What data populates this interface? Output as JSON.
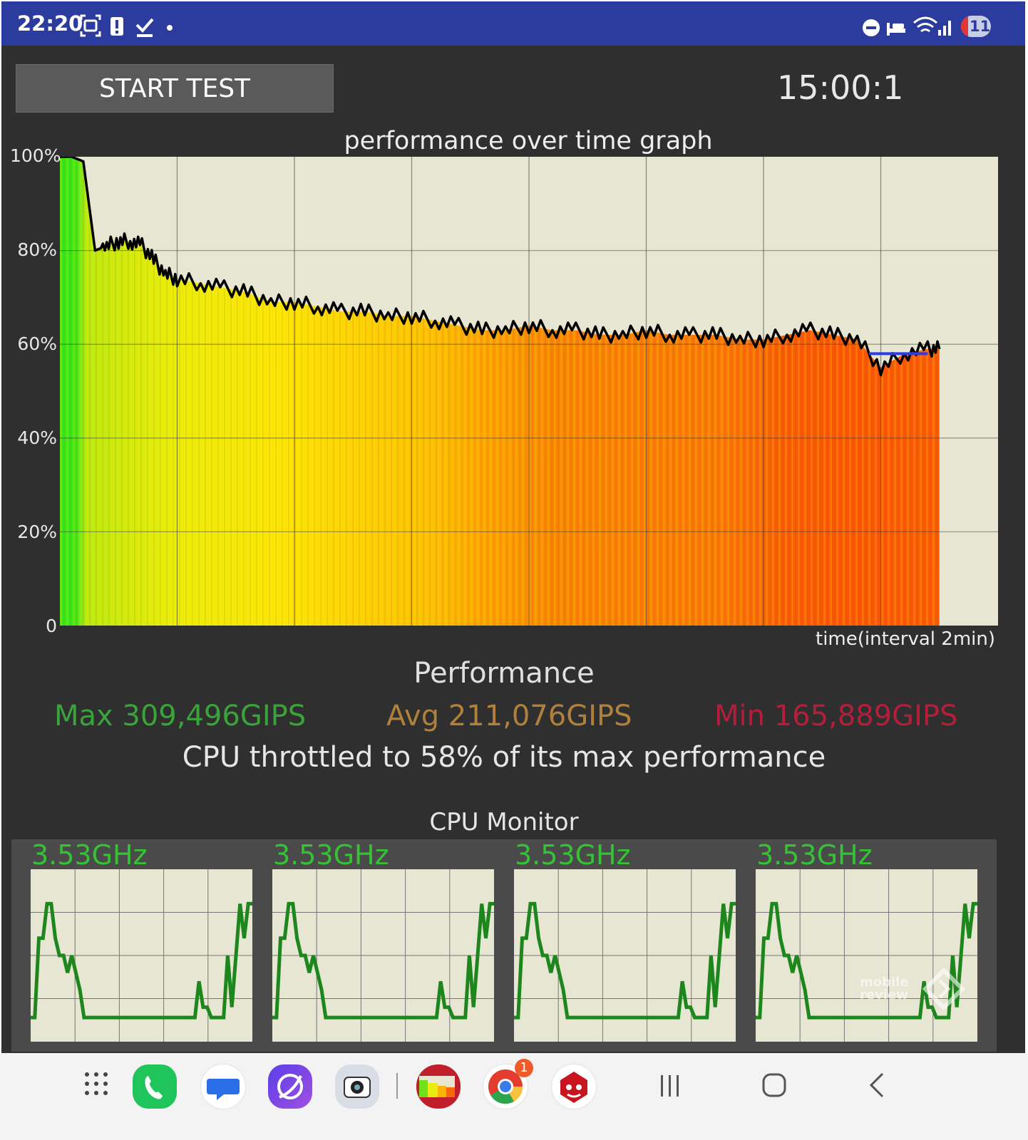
{
  "status_bar": {
    "time": "22:20",
    "icons": [
      "screenshot-icon",
      "alert-icon",
      "check-icon",
      "dot-icon",
      "dnd-icon",
      "bed-icon",
      "wifi-icon",
      "signal-icon"
    ],
    "battery": "11"
  },
  "controls": {
    "start_test_label": "START TEST",
    "timer": "15:00:1"
  },
  "chart_data": {
    "type": "area",
    "title": "performance over time graph",
    "xlabel": "time(interval 2min)",
    "ylabel": "",
    "ylim": [
      0,
      100
    ],
    "yticks": [
      "100%",
      "80%",
      "60%",
      "40%",
      "20%",
      "0"
    ],
    "grid": true,
    "x": [
      0,
      0.1,
      0.2,
      0.3,
      0.4,
      0.5,
      0.6,
      0.7,
      0.8,
      0.9,
      1.0,
      1.2,
      1.4,
      1.6,
      1.8,
      2.0,
      2.2,
      2.4,
      2.6,
      2.8,
      3.0,
      3.2,
      3.4,
      3.6,
      3.8,
      4.0,
      4.2,
      4.4,
      4.6,
      4.8,
      5.0,
      5.2,
      5.4,
      5.6,
      5.8,
      6.0,
      6.2,
      6.4,
      6.6,
      6.8,
      7.0,
      7.2,
      7.4,
      7.5
    ],
    "y": [
      100,
      100,
      99,
      80,
      81,
      82,
      82,
      81,
      78,
      75,
      74,
      73,
      72,
      71,
      69,
      69,
      68,
      67,
      67,
      66,
      66,
      65,
      64,
      63,
      63,
      64,
      63,
      63,
      62,
      62,
      63,
      62,
      62,
      62,
      61,
      61,
      62,
      63,
      62,
      61,
      55,
      58,
      59,
      59
    ]
  },
  "performance": {
    "heading": "Performance",
    "max": "Max 309,496GIPS",
    "avg": "Avg 211,076GIPS",
    "min": "Min 165,889GIPS",
    "throttle": "CPU throttled to 58% of its max performance"
  },
  "cpu_monitor": {
    "title": "CPU Monitor",
    "cores": [
      {
        "freq": "3.53GHz",
        "levels": [
          0.14,
          0.14,
          0.6,
          0.6,
          0.8,
          0.8,
          0.6,
          0.5,
          0.5,
          0.4,
          0.5,
          0.4,
          0.3,
          0.14,
          0.14,
          0.14,
          0.14,
          0.14,
          0.14,
          0.14,
          0.14,
          0.14,
          0.14,
          0.14,
          0.14,
          0.14,
          0.14,
          0.14,
          0.14,
          0.14,
          0.14,
          0.14,
          0.14,
          0.14,
          0.14,
          0.14,
          0.14,
          0.14,
          0.14,
          0.14,
          0.14,
          0.35,
          0.2,
          0.2,
          0.14,
          0.14,
          0.14,
          0.14,
          0.5,
          0.2,
          0.5,
          0.8,
          0.6,
          0.8,
          0.8
        ]
      },
      {
        "freq": "3.53GHz",
        "levels": [
          0.14,
          0.14,
          0.6,
          0.6,
          0.8,
          0.8,
          0.6,
          0.5,
          0.5,
          0.4,
          0.5,
          0.4,
          0.3,
          0.14,
          0.14,
          0.14,
          0.14,
          0.14,
          0.14,
          0.14,
          0.14,
          0.14,
          0.14,
          0.14,
          0.14,
          0.14,
          0.14,
          0.14,
          0.14,
          0.14,
          0.14,
          0.14,
          0.14,
          0.14,
          0.14,
          0.14,
          0.14,
          0.14,
          0.14,
          0.14,
          0.14,
          0.35,
          0.2,
          0.2,
          0.14,
          0.14,
          0.14,
          0.14,
          0.5,
          0.2,
          0.5,
          0.8,
          0.6,
          0.8,
          0.8
        ]
      },
      {
        "freq": "3.53GHz",
        "levels": [
          0.14,
          0.14,
          0.6,
          0.6,
          0.8,
          0.8,
          0.6,
          0.5,
          0.5,
          0.4,
          0.5,
          0.4,
          0.3,
          0.14,
          0.14,
          0.14,
          0.14,
          0.14,
          0.14,
          0.14,
          0.14,
          0.14,
          0.14,
          0.14,
          0.14,
          0.14,
          0.14,
          0.14,
          0.14,
          0.14,
          0.14,
          0.14,
          0.14,
          0.14,
          0.14,
          0.14,
          0.14,
          0.14,
          0.14,
          0.14,
          0.14,
          0.35,
          0.2,
          0.2,
          0.14,
          0.14,
          0.14,
          0.14,
          0.5,
          0.2,
          0.5,
          0.8,
          0.6,
          0.8,
          0.8
        ]
      },
      {
        "freq": "3.53GHz",
        "levels": [
          0.14,
          0.14,
          0.6,
          0.6,
          0.8,
          0.8,
          0.6,
          0.5,
          0.5,
          0.4,
          0.5,
          0.4,
          0.3,
          0.14,
          0.14,
          0.14,
          0.14,
          0.14,
          0.14,
          0.14,
          0.14,
          0.14,
          0.14,
          0.14,
          0.14,
          0.14,
          0.14,
          0.14,
          0.14,
          0.14,
          0.14,
          0.14,
          0.14,
          0.14,
          0.14,
          0.14,
          0.14,
          0.14,
          0.14,
          0.14,
          0.14,
          0.35,
          0.2,
          0.2,
          0.14,
          0.14,
          0.14,
          0.14,
          0.5,
          0.2,
          0.5,
          0.8,
          0.6,
          0.8,
          0.8
        ]
      }
    ]
  },
  "watermark": "mobile review",
  "nav_bar": {
    "apps": [
      "apps-grid-icon",
      "phone-app-icon",
      "messages-app-icon",
      "internet-app-icon",
      "camera-app-icon",
      "throttling-app-icon",
      "chrome-app-icon",
      "antutu-app-icon"
    ],
    "chrome_badge": "1",
    "buttons": [
      "recents-icon",
      "home-icon",
      "back-icon"
    ]
  }
}
